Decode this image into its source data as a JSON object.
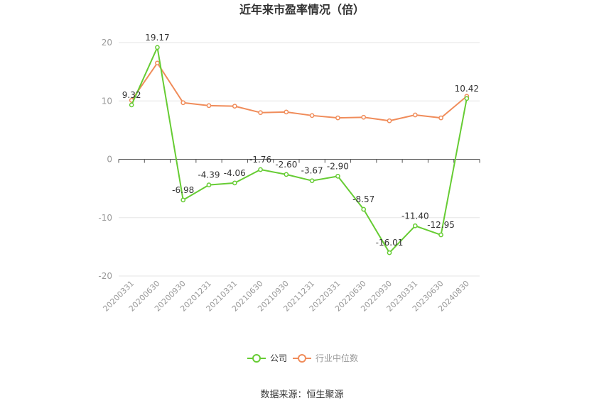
{
  "chart_data": {
    "type": "line",
    "title": "近年来市盈率情况（倍）",
    "categories": [
      "20200331",
      "20200630",
      "20200930",
      "20201231",
      "20210331",
      "20210630",
      "20210930",
      "20211231",
      "20220331",
      "20220630",
      "20220930",
      "20230331",
      "20230630",
      "20240830"
    ],
    "ylim": [
      -20,
      20
    ],
    "yticks": [
      20,
      10,
      0,
      -10,
      -20
    ],
    "grid": true,
    "legend_position": "bottom",
    "series": [
      {
        "name": "公司",
        "color": "#66cc33",
        "values": [
          9.32,
          19.17,
          -6.98,
          -4.39,
          -4.06,
          -1.76,
          -2.6,
          -3.67,
          -2.9,
          -8.57,
          -16.01,
          -11.4,
          -12.95,
          10.42
        ],
        "labels": [
          "9.32",
          "19.17",
          "-6.98",
          "-4.39",
          "-4.06",
          "-1.76",
          "-2.60",
          "-3.67",
          "-2.90",
          "-8.57",
          "-16.01",
          "-11.40",
          "-12.95",
          "10.42"
        ]
      },
      {
        "name": "行业中位数",
        "color": "#f08c5a",
        "values": [
          10.1,
          16.5,
          9.7,
          9.2,
          9.1,
          8.0,
          8.1,
          7.5,
          7.1,
          7.2,
          6.6,
          7.6,
          7.1,
          10.8
        ]
      }
    ]
  },
  "source_text": "数据来源：恒生聚源"
}
